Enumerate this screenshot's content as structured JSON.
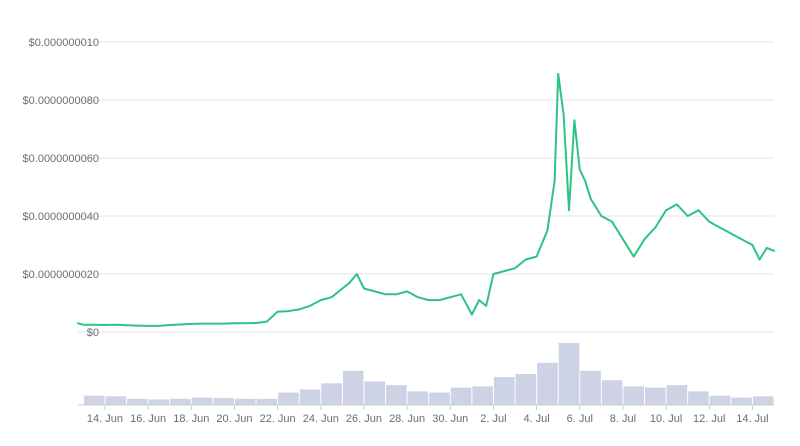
{
  "chart_data": {
    "type": "line",
    "title": "",
    "xlabel": "",
    "ylabel": "",
    "price_color": "#2ec384",
    "volume_color": "#cdd3e4",
    "grid": true,
    "legend": "none",
    "y_ticks": [
      {
        "value": 0,
        "label": "$0"
      },
      {
        "value": 2e-09,
        "label": "$0.0000000020"
      },
      {
        "value": 4e-09,
        "label": "$0.0000000040"
      },
      {
        "value": 6e-09,
        "label": "$0.0000000060"
      },
      {
        "value": 8e-09,
        "label": "$0.0000000080"
      },
      {
        "value": 1e-08,
        "label": "$0.000000010"
      }
    ],
    "ylim": [
      0,
      1e-08
    ],
    "x_ticks": [
      "14. Jun",
      "16. Jun",
      "18. Jun",
      "20. Jun",
      "22. Jun",
      "24. Jun",
      "26. Jun",
      "28. Jun",
      "30. Jun",
      "2. Jul",
      "4. Jul",
      "6. Jul",
      "8. Jul",
      "10. Jul",
      "12. Jul",
      "14. Jul"
    ],
    "x_tick_dates": [
      "2021-06-14",
      "2021-06-16",
      "2021-06-18",
      "2021-06-20",
      "2021-06-22",
      "2021-06-24",
      "2021-06-26",
      "2021-06-28",
      "2021-06-30",
      "2021-07-02",
      "2021-07-04",
      "2021-07-06",
      "2021-07-08",
      "2021-07-10",
      "2021-07-12",
      "2021-07-14"
    ],
    "xlim": [
      "2021-06-12 18:00",
      "2021-07-15 00:00"
    ],
    "series": [
      {
        "kind": "price",
        "x": [
          "2021-06-12 18:00",
          "2021-06-13 00:00",
          "2021-06-13 12:00",
          "2021-06-14 00:00",
          "2021-06-14 12:00",
          "2021-06-15 00:00",
          "2021-06-15 12:00",
          "2021-06-16 00:00",
          "2021-06-16 12:00",
          "2021-06-17 00:00",
          "2021-06-17 12:00",
          "2021-06-18 00:00",
          "2021-06-18 12:00",
          "2021-06-19 00:00",
          "2021-06-19 12:00",
          "2021-06-20 00:00",
          "2021-06-20 12:00",
          "2021-06-21 00:00",
          "2021-06-21 12:00",
          "2021-06-22 00:00",
          "2021-06-22 12:00",
          "2021-06-23 00:00",
          "2021-06-23 12:00",
          "2021-06-24 00:00",
          "2021-06-24 12:00",
          "2021-06-25 00:00",
          "2021-06-25 08:00",
          "2021-06-25 16:00",
          "2021-06-26 00:00",
          "2021-06-26 12:00",
          "2021-06-27 00:00",
          "2021-06-27 12:00",
          "2021-06-28 00:00",
          "2021-06-28 12:00",
          "2021-06-29 00:00",
          "2021-06-29 12:00",
          "2021-06-30 00:00",
          "2021-06-30 12:00",
          "2021-07-01 00:00",
          "2021-07-01 08:00",
          "2021-07-01 16:00",
          "2021-07-02 00:00",
          "2021-07-02 12:00",
          "2021-07-03 00:00",
          "2021-07-03 12:00",
          "2021-07-04 00:00",
          "2021-07-04 12:00",
          "2021-07-04 20:00",
          "2021-07-05 00:00",
          "2021-07-05 06:00",
          "2021-07-05 12:00",
          "2021-07-05 18:00",
          "2021-07-06 00:00",
          "2021-07-06 06:00",
          "2021-07-06 12:00",
          "2021-07-06 18:00",
          "2021-07-07 00:00",
          "2021-07-07 12:00",
          "2021-07-08 00:00",
          "2021-07-08 12:00",
          "2021-07-09 00:00",
          "2021-07-09 12:00",
          "2021-07-10 00:00",
          "2021-07-10 12:00",
          "2021-07-11 00:00",
          "2021-07-11 12:00",
          "2021-07-12 00:00",
          "2021-07-12 12:00",
          "2021-07-13 00:00",
          "2021-07-13 12:00",
          "2021-07-14 00:00",
          "2021-07-14 08:00",
          "2021-07-14 16:00",
          "2021-07-15 00:00"
        ],
        "values": [
          3e-10,
          2.5e-10,
          2.5e-10,
          2.4e-10,
          2.5e-10,
          2.3e-10,
          2.2e-10,
          2.1e-10,
          2.1e-10,
          2.4e-10,
          2.6e-10,
          2.8e-10,
          2.9e-10,
          2.9e-10,
          2.9e-10,
          3e-10,
          3e-10,
          3.1e-10,
          3.6e-10,
          7e-10,
          7.2e-10,
          7.8e-10,
          9e-10,
          1.1e-09,
          1.2e-09,
          1.5e-09,
          1.7e-09,
          2e-09,
          1.5e-09,
          1.4e-09,
          1.3e-09,
          1.3e-09,
          1.4e-09,
          1.2e-09,
          1.1e-09,
          1.1e-09,
          1.2e-09,
          1.3e-09,
          6e-10,
          1.1e-09,
          9e-10,
          2e-09,
          2.1e-09,
          2.2e-09,
          2.5e-09,
          2.6e-09,
          3.5e-09,
          5.2e-09,
          8.9e-09,
          7.5e-09,
          4.2e-09,
          7.3e-09,
          5.6e-09,
          5.2e-09,
          4.6e-09,
          4.3e-09,
          4e-09,
          3.8e-09,
          3.2e-09,
          2.6e-09,
          3.2e-09,
          3.6e-09,
          4.2e-09,
          4.4e-09,
          4e-09,
          4.2e-09,
          3.8e-09,
          3.6e-09,
          3.4e-09,
          3.2e-09,
          3e-09,
          2.5e-09,
          2.9e-09,
          2.8e-09
        ]
      },
      {
        "kind": "volume",
        "x": [
          "2021-06-13",
          "2021-06-14",
          "2021-06-15",
          "2021-06-16",
          "2021-06-17",
          "2021-06-18",
          "2021-06-19",
          "2021-06-20",
          "2021-06-21",
          "2021-06-22",
          "2021-06-23",
          "2021-06-24",
          "2021-06-25",
          "2021-06-26",
          "2021-06-27",
          "2021-06-28",
          "2021-06-29",
          "2021-06-30",
          "2021-07-01",
          "2021-07-02",
          "2021-07-03",
          "2021-07-04",
          "2021-07-05",
          "2021-07-06",
          "2021-07-07",
          "2021-07-08",
          "2021-07-09",
          "2021-07-10",
          "2021-07-11",
          "2021-07-12",
          "2021-07-13",
          "2021-07-14"
        ],
        "relative_values": [
          0.15,
          0.14,
          0.1,
          0.09,
          0.1,
          0.12,
          0.11,
          0.1,
          0.1,
          0.2,
          0.25,
          0.35,
          0.55,
          0.38,
          0.32,
          0.22,
          0.2,
          0.28,
          0.3,
          0.45,
          0.5,
          0.68,
          1.0,
          0.55,
          0.4,
          0.3,
          0.28,
          0.32,
          0.22,
          0.15,
          0.12,
          0.14
        ]
      }
    ]
  }
}
